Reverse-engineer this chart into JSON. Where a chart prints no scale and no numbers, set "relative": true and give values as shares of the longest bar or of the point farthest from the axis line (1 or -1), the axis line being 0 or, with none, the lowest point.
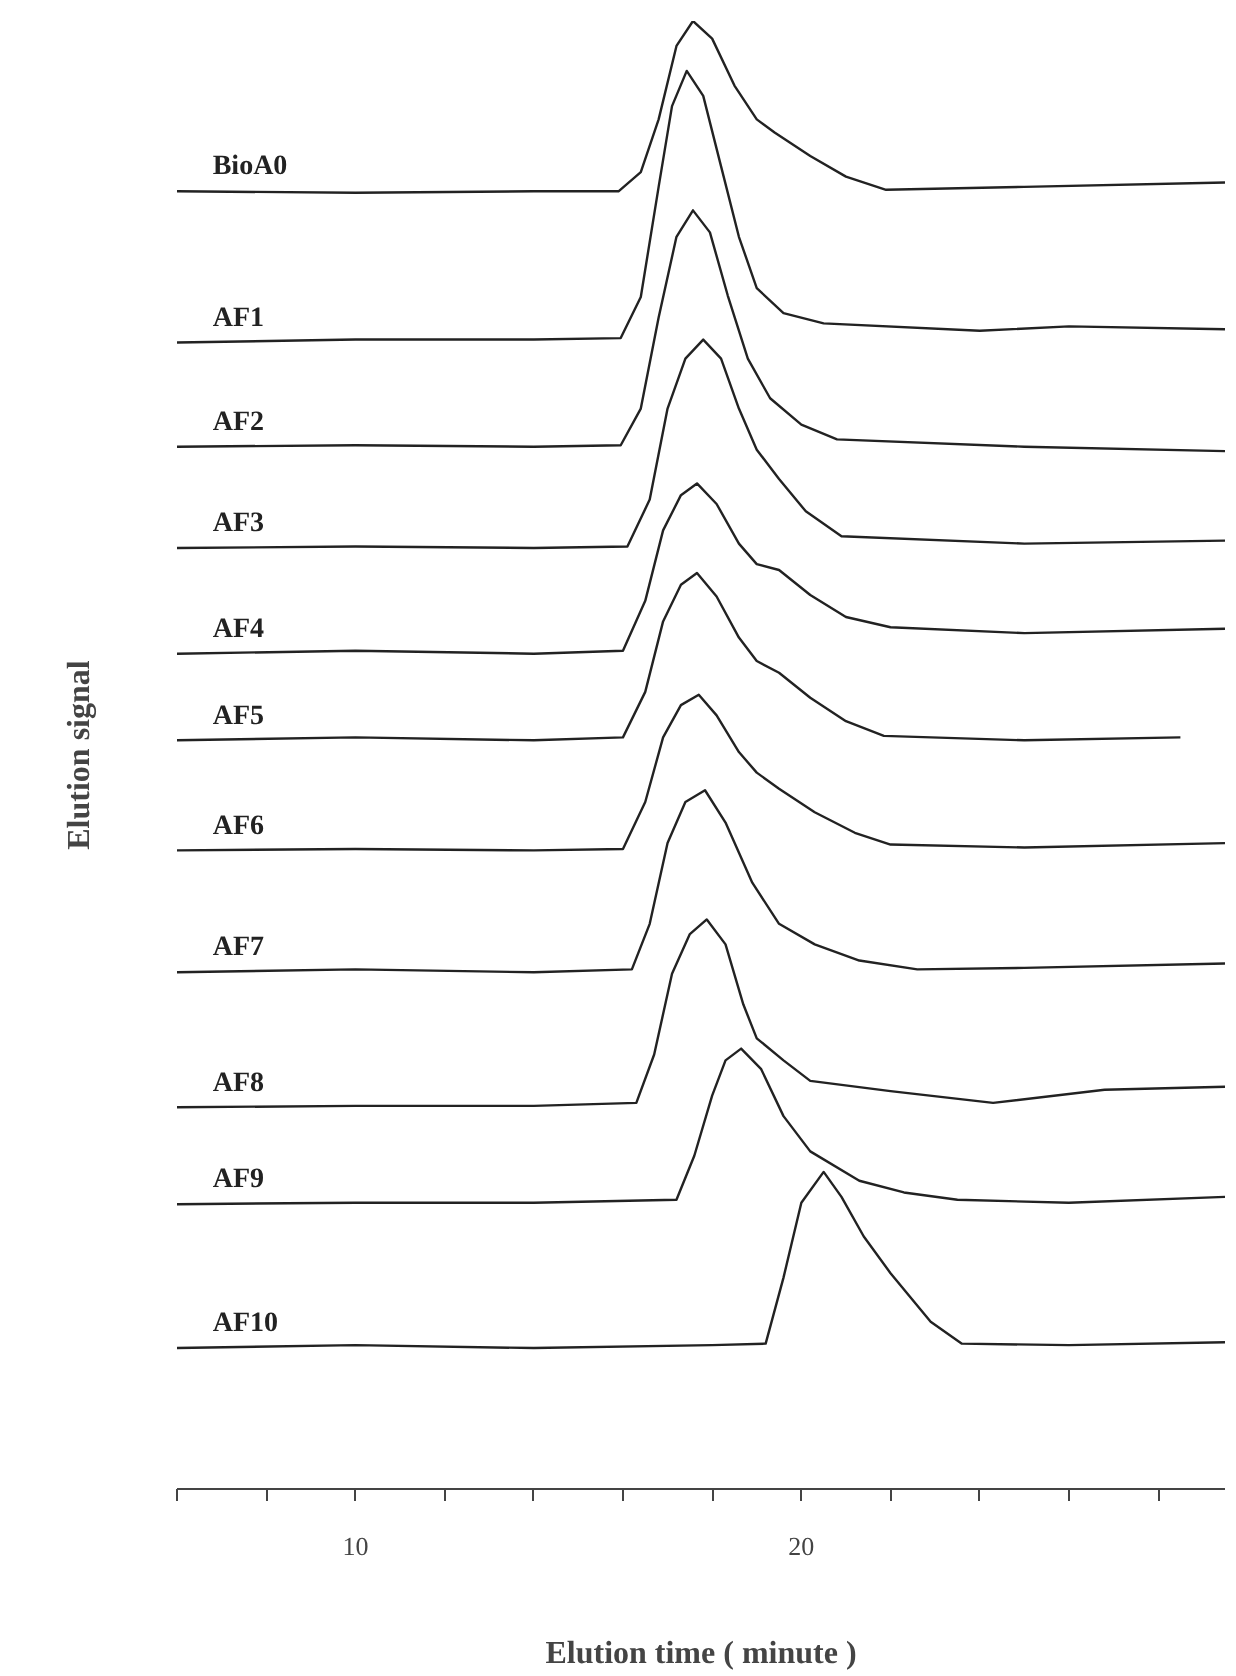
{
  "chart_data": {
    "type": "line",
    "relative": true,
    "xlabel": "Elution time ( minute )",
    "ylabel": "Elution signal",
    "tick_labels": "x",
    "xlim": [
      6,
      29.5
    ],
    "xticks": [
      {
        "value": 6,
        "label": null
      },
      {
        "value": 8,
        "label": null
      },
      10,
      {
        "value": 12,
        "label": null
      },
      {
        "value": 14,
        "label": null
      },
      {
        "value": 16,
        "label": null
      },
      {
        "value": 18,
        "label": null
      },
      20,
      {
        "value": 22,
        "label": null
      },
      {
        "value": 24,
        "label": null
      },
      {
        "value": 26,
        "label": null
      },
      {
        "value": 28,
        "label": null
      }
    ],
    "series": [
      {
        "name": "BioA0",
        "color": "#222222",
        "x": [
          6,
          10,
          14,
          15.9,
          16.4,
          16.8,
          17.2,
          17.57,
          18.0,
          18.5,
          19.0,
          19.4,
          20.2,
          21.0,
          21.9,
          25,
          29.5
        ],
        "values": [
          0.884,
          0.883,
          0.884,
          0.884,
          0.897,
          0.933,
          0.983,
          1.0,
          0.988,
          0.956,
          0.933,
          0.924,
          0.908,
          0.894,
          0.885,
          0.887,
          0.89
        ]
      },
      {
        "name": "AF1",
        "color": "#222222",
        "x": [
          6,
          10,
          14,
          15.95,
          16.4,
          16.8,
          17.1,
          17.43,
          17.8,
          18.2,
          18.6,
          19.0,
          19.6,
          20.5,
          24,
          26,
          29.5
        ],
        "values": [
          0.781,
          0.783,
          0.783,
          0.784,
          0.812,
          0.887,
          0.942,
          0.966,
          0.949,
          0.901,
          0.853,
          0.818,
          0.801,
          0.794,
          0.789,
          0.792,
          0.79
        ]
      },
      {
        "name": "AF2",
        "color": "#222222",
        "x": [
          6,
          10,
          14,
          15.95,
          16.4,
          16.8,
          17.2,
          17.57,
          17.95,
          18.35,
          18.8,
          19.3,
          20.0,
          20.8,
          25,
          29.5
        ],
        "values": [
          0.71,
          0.711,
          0.71,
          0.711,
          0.736,
          0.798,
          0.853,
          0.871,
          0.856,
          0.813,
          0.77,
          0.743,
          0.725,
          0.715,
          0.71,
          0.707
        ]
      },
      {
        "name": "AF3",
        "color": "#222222",
        "x": [
          6,
          10,
          14,
          16.1,
          16.6,
          17.0,
          17.4,
          17.8,
          18.2,
          18.6,
          19.0,
          19.5,
          20.1,
          20.9,
          25,
          29.5
        ],
        "values": [
          0.641,
          0.642,
          0.641,
          0.642,
          0.674,
          0.736,
          0.77,
          0.783,
          0.77,
          0.736,
          0.708,
          0.688,
          0.666,
          0.649,
          0.644,
          0.646
        ]
      },
      {
        "name": "AF4",
        "color": "#222222",
        "x": [
          6,
          10,
          14,
          16.0,
          16.5,
          16.9,
          17.3,
          17.66,
          18.1,
          18.6,
          19.0,
          19.5,
          20.2,
          21.0,
          22.0,
          25,
          29.5
        ],
        "values": [
          0.569,
          0.571,
          0.569,
          0.571,
          0.605,
          0.653,
          0.677,
          0.685,
          0.671,
          0.644,
          0.63,
          0.626,
          0.609,
          0.594,
          0.587,
          0.583,
          0.586
        ]
      },
      {
        "name": "AF5",
        "color": "#222222",
        "x": [
          6,
          10,
          14,
          16.0,
          16.5,
          16.9,
          17.3,
          17.66,
          18.1,
          18.6,
          19.0,
          19.5,
          20.2,
          21.0,
          21.85,
          25,
          28.5
        ],
        "values": [
          0.51,
          0.512,
          0.51,
          0.512,
          0.543,
          0.591,
          0.616,
          0.624,
          0.608,
          0.58,
          0.564,
          0.556,
          0.539,
          0.523,
          0.513,
          0.51,
          0.512
        ]
      },
      {
        "name": "AF6",
        "color": "#222222",
        "x": [
          6,
          10,
          14,
          16.0,
          16.5,
          16.9,
          17.3,
          17.7,
          18.1,
          18.6,
          19.0,
          19.5,
          20.3,
          21.2,
          22.0,
          25,
          29.5
        ],
        "values": [
          0.435,
          0.436,
          0.435,
          0.436,
          0.468,
          0.512,
          0.534,
          0.541,
          0.527,
          0.502,
          0.488,
          0.477,
          0.461,
          0.447,
          0.439,
          0.437,
          0.44
        ]
      },
      {
        "name": "AF7",
        "color": "#222222",
        "x": [
          6,
          10,
          14,
          16.2,
          16.6,
          17.0,
          17.4,
          17.84,
          18.3,
          18.9,
          19.5,
          20.3,
          21.3,
          22.6,
          25,
          29.5
        ],
        "values": [
          0.352,
          0.354,
          0.352,
          0.354,
          0.385,
          0.44,
          0.468,
          0.476,
          0.454,
          0.413,
          0.385,
          0.371,
          0.36,
          0.354,
          0.355,
          0.358
        ]
      },
      {
        "name": "AF8",
        "color": "#222222",
        "x": [
          6,
          10,
          14,
          16.3,
          16.7,
          17.1,
          17.5,
          17.88,
          18.3,
          18.7,
          19.0,
          19.6,
          20.2,
          22.0,
          24.3,
          26.8,
          29.5
        ],
        "values": [
          0.26,
          0.261,
          0.261,
          0.263,
          0.296,
          0.351,
          0.378,
          0.388,
          0.371,
          0.33,
          0.307,
          0.292,
          0.278,
          0.271,
          0.263,
          0.272,
          0.274
        ]
      },
      {
        "name": "AF9",
        "color": "#222222",
        "x": [
          6,
          10,
          14,
          17.2,
          17.6,
          18.0,
          18.3,
          18.65,
          19.1,
          19.6,
          20.2,
          21.3,
          22.3,
          23.5,
          26,
          29.5
        ],
        "values": [
          0.194,
          0.195,
          0.195,
          0.197,
          0.227,
          0.268,
          0.292,
          0.3,
          0.286,
          0.254,
          0.23,
          0.21,
          0.202,
          0.197,
          0.195,
          0.199
        ]
      },
      {
        "name": "AF10",
        "color": "#222222",
        "x": [
          6,
          10,
          14,
          18,
          19.2,
          19.6,
          20.0,
          20.5,
          20.9,
          21.4,
          22.0,
          22.9,
          23.6,
          26,
          29.5
        ],
        "values": [
          0.096,
          0.098,
          0.096,
          0.098,
          0.099,
          0.144,
          0.195,
          0.216,
          0.199,
          0.172,
          0.147,
          0.114,
          0.099,
          0.098,
          0.1
        ]
      }
    ]
  }
}
